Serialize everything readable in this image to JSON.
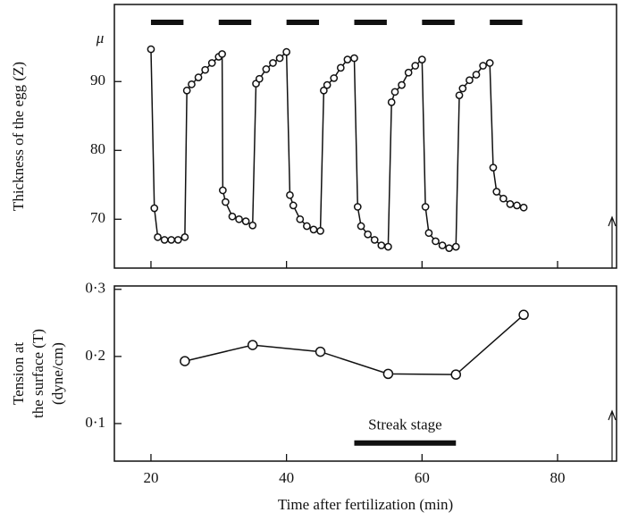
{
  "chart_data": [
    {
      "type": "line",
      "ylabel": [
        "Thickness of the egg (Z)"
      ],
      "y_unit": "μ",
      "x": [
        20,
        20.5,
        21,
        22,
        23,
        24,
        25,
        25.3,
        26,
        27,
        28,
        29,
        30,
        30.5,
        30.6,
        31,
        32,
        33,
        34,
        35,
        35.5,
        36,
        37,
        38,
        39,
        40,
        40.5,
        41,
        42,
        43,
        44,
        45,
        45.5,
        46,
        47,
        48,
        49,
        50,
        50.5,
        51,
        52,
        53,
        54,
        55,
        55.5,
        56,
        57,
        58,
        59,
        60,
        60.5,
        61,
        62,
        63,
        64,
        65,
        65.5,
        66,
        67,
        68,
        69,
        70,
        70.5,
        71,
        72,
        73,
        74,
        75
      ],
      "series": [
        {
          "color": "#111111",
          "values": [
            94.7,
            71.6,
            67.4,
            67,
            67,
            67,
            67.4,
            88.7,
            89.6,
            90.6,
            91.7,
            92.7,
            93.6,
            94,
            74.2,
            72.5,
            70.4,
            70,
            69.7,
            69.1,
            89.7,
            90.4,
            91.8,
            92.7,
            93.4,
            94.3,
            73.5,
            72,
            70,
            69,
            68.5,
            68.3,
            88.7,
            89.5,
            90.5,
            92,
            93.2,
            93.4,
            71.8,
            69,
            67.8,
            67,
            66.2,
            66,
            87,
            88.5,
            89.5,
            91.3,
            92.3,
            93.2,
            71.8,
            68,
            66.8,
            66.2,
            65.8,
            66,
            88,
            89,
            90.2,
            91,
            92.3,
            92.7,
            77.5,
            74,
            73,
            72.2,
            72,
            71.7
          ]
        }
      ],
      "intervals": [
        {
          "start": 20,
          "end": 24.8,
          "level": 98.6
        },
        {
          "start": 30,
          "end": 34.8,
          "level": 98.6
        },
        {
          "start": 40,
          "end": 44.8,
          "level": 98.6
        },
        {
          "start": 50,
          "end": 54.8,
          "level": 98.6
        },
        {
          "start": 60,
          "end": 64.8,
          "level": 98.6
        },
        {
          "start": 70,
          "end": 74.8,
          "level": 98.6
        }
      ],
      "xlim": [
        14.6,
        88.7
      ],
      "ylim": [
        62.9,
        101.2
      ],
      "xticks": [
        20,
        40,
        60,
        80
      ],
      "yticks": [
        70,
        80,
        90
      ]
    },
    {
      "type": "line",
      "ylabel": [
        "Tension at",
        "the surface (T)",
        "(dyne/cm)"
      ],
      "xlabel": "Time after fertilization (min)",
      "x": [
        25,
        35,
        45,
        55,
        65,
        75
      ],
      "series": [
        {
          "color": "#111111",
          "values": [
            0.193,
            0.217,
            0.207,
            0.174,
            0.173,
            0.262
          ]
        }
      ],
      "intervals": [
        {
          "start": 50,
          "end": 65,
          "level": 0.071
        }
      ],
      "annotation": "Streak stage",
      "xlim": [
        14.6,
        88.7
      ],
      "ylim": [
        0.044,
        0.305
      ],
      "xticks": [
        20,
        40,
        60,
        80
      ],
      "yticks": [
        {
          "value": 0.1,
          "label": "0·1"
        },
        {
          "value": 0.2,
          "label": "0·2"
        },
        {
          "value": 0.3,
          "label": "0·3"
        }
      ]
    }
  ]
}
